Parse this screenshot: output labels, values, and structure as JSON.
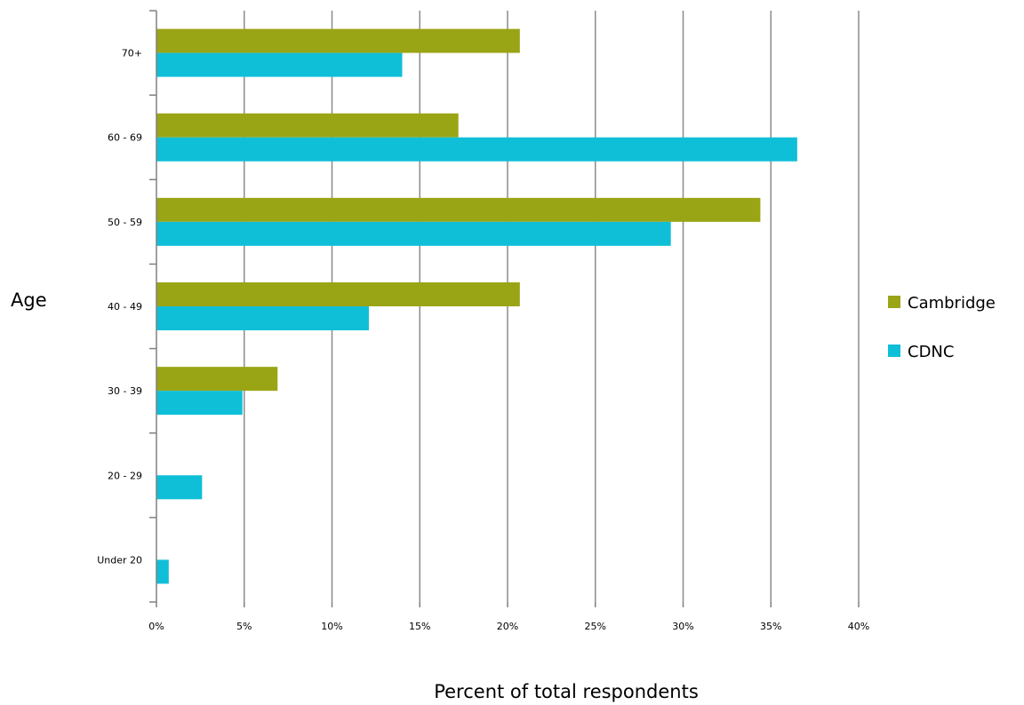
{
  "chart_data": {
    "type": "bar",
    "orientation": "horizontal",
    "categories": [
      "Under 20",
      "20 - 29",
      "30 - 39",
      "40 - 49",
      "50 - 59",
      "60 - 69",
      "70+"
    ],
    "series": [
      {
        "name": "Cambridge",
        "color": "#9aa515",
        "values": [
          0,
          0,
          6.9,
          20.7,
          34.4,
          17.2,
          20.7
        ]
      },
      {
        "name": "CDNC",
        "color": "#0fbfd8",
        "values": [
          0.7,
          2.6,
          4.9,
          12.1,
          29.3,
          36.5,
          14.0
        ]
      }
    ],
    "x_ticks": [
      "0%",
      "5%",
      "10%",
      "15%",
      "20%",
      "25%",
      "30%",
      "35%",
      "40%"
    ],
    "xlim": [
      0,
      40
    ],
    "xlabel": "Percent of total respondents",
    "ylabel": "Age",
    "grid": "vertical",
    "legend_position": "right"
  }
}
